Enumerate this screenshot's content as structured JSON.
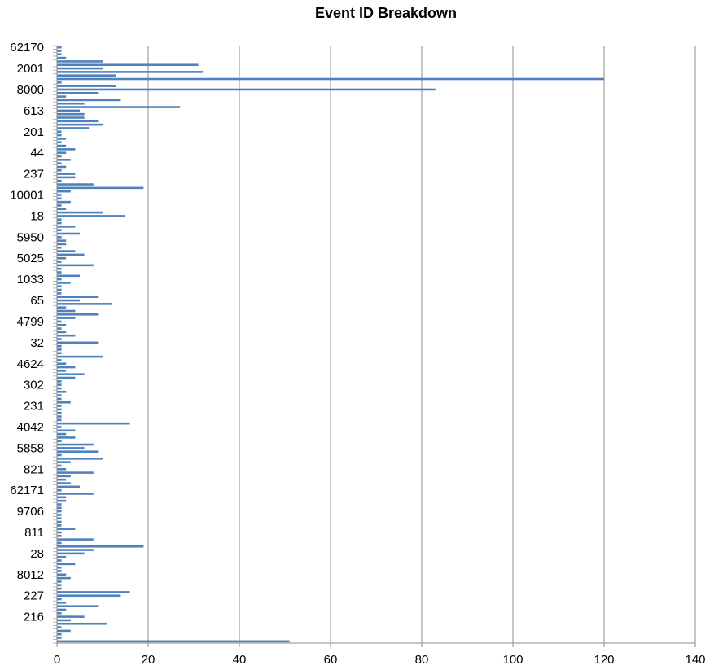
{
  "chart_data": {
    "type": "bar",
    "orientation": "horizontal",
    "title": "Event ID Breakdown",
    "xlabel": "",
    "ylabel": "",
    "xlim": [
      0,
      140
    ],
    "x_ticks": [
      "0",
      "20",
      "40",
      "60",
      "80",
      "100",
      "120",
      "140"
    ],
    "grid": "vertical",
    "bar_color": "#4f81bd",
    "category_tick_labels": [
      "62170",
      "2001",
      "8000",
      "613",
      "201",
      "44",
      "237",
      "10001",
      "18",
      "5950",
      "5025",
      "1033",
      "65",
      "4799",
      "32",
      "4624",
      "302",
      "231",
      "4042",
      "5858",
      "821",
      "62171",
      "9706",
      "811",
      "28",
      "8012",
      "227",
      "216"
    ],
    "values": [
      1,
      1,
      1,
      2,
      10,
      31,
      10,
      32,
      13,
      120,
      1,
      13,
      83,
      9,
      2,
      14,
      6,
      27,
      5,
      6,
      6,
      9,
      10,
      7,
      1,
      1,
      2,
      1,
      2,
      4,
      2,
      1,
      3,
      1,
      2,
      1,
      4,
      4,
      1,
      8,
      19,
      3,
      1,
      1,
      3,
      1,
      2,
      10,
      15,
      1,
      1,
      4,
      1,
      5,
      1,
      2,
      2,
      1,
      4,
      6,
      2,
      1,
      8,
      1,
      1,
      5,
      1,
      3,
      1,
      1,
      1,
      9,
      5,
      12,
      2,
      4,
      9,
      4,
      1,
      2,
      1,
      2,
      4,
      1,
      9,
      1,
      1,
      1,
      10,
      1,
      2,
      4,
      2,
      6,
      4,
      1,
      1,
      1,
      2,
      1,
      1,
      3,
      1,
      1,
      1,
      1,
      1,
      16,
      1,
      4,
      2,
      4,
      1,
      8,
      6,
      9,
      1,
      10,
      3,
      1,
      2,
      8,
      3,
      2,
      3,
      5,
      1,
      8,
      2,
      2,
      1,
      1,
      1,
      1,
      1,
      1,
      1,
      4,
      1,
      1,
      8,
      1,
      19,
      8,
      6,
      2,
      1,
      4,
      1,
      1,
      2,
      3,
      1,
      1,
      1,
      16,
      14,
      1,
      2,
      9,
      2,
      1,
      6,
      3,
      11,
      1,
      3,
      1,
      1,
      51
    ]
  }
}
